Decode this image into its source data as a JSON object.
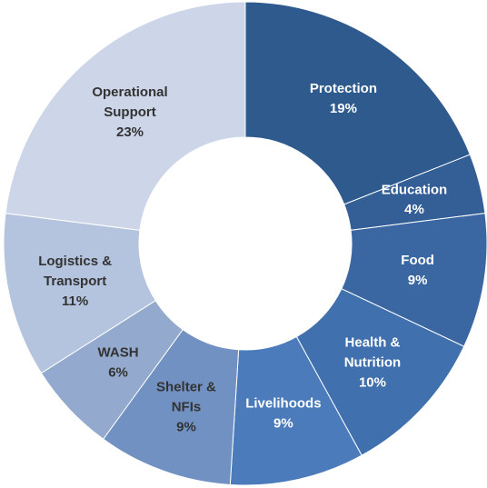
{
  "chart_data": {
    "type": "donut",
    "categories": [
      "Protection",
      "Education",
      "Food",
      "Health & Nutrition",
      "Livelihoods",
      "Shelter & NFIs",
      "WASH",
      "Logistics & Transport",
      "Operational Support"
    ],
    "values": [
      19,
      4,
      9,
      10,
      9,
      9,
      6,
      11,
      23
    ],
    "value_labels": [
      "19%",
      "4%",
      "9%",
      "10%",
      "9%",
      "9%",
      "6%",
      "11%",
      "23%"
    ],
    "colors": [
      "#2f5a8e",
      "#345f96",
      "#3a67a2",
      "#4070ad",
      "#4b7bba",
      "#7091c2",
      "#93a9cd",
      "#b4c3de",
      "#ccd6e8"
    ]
  }
}
